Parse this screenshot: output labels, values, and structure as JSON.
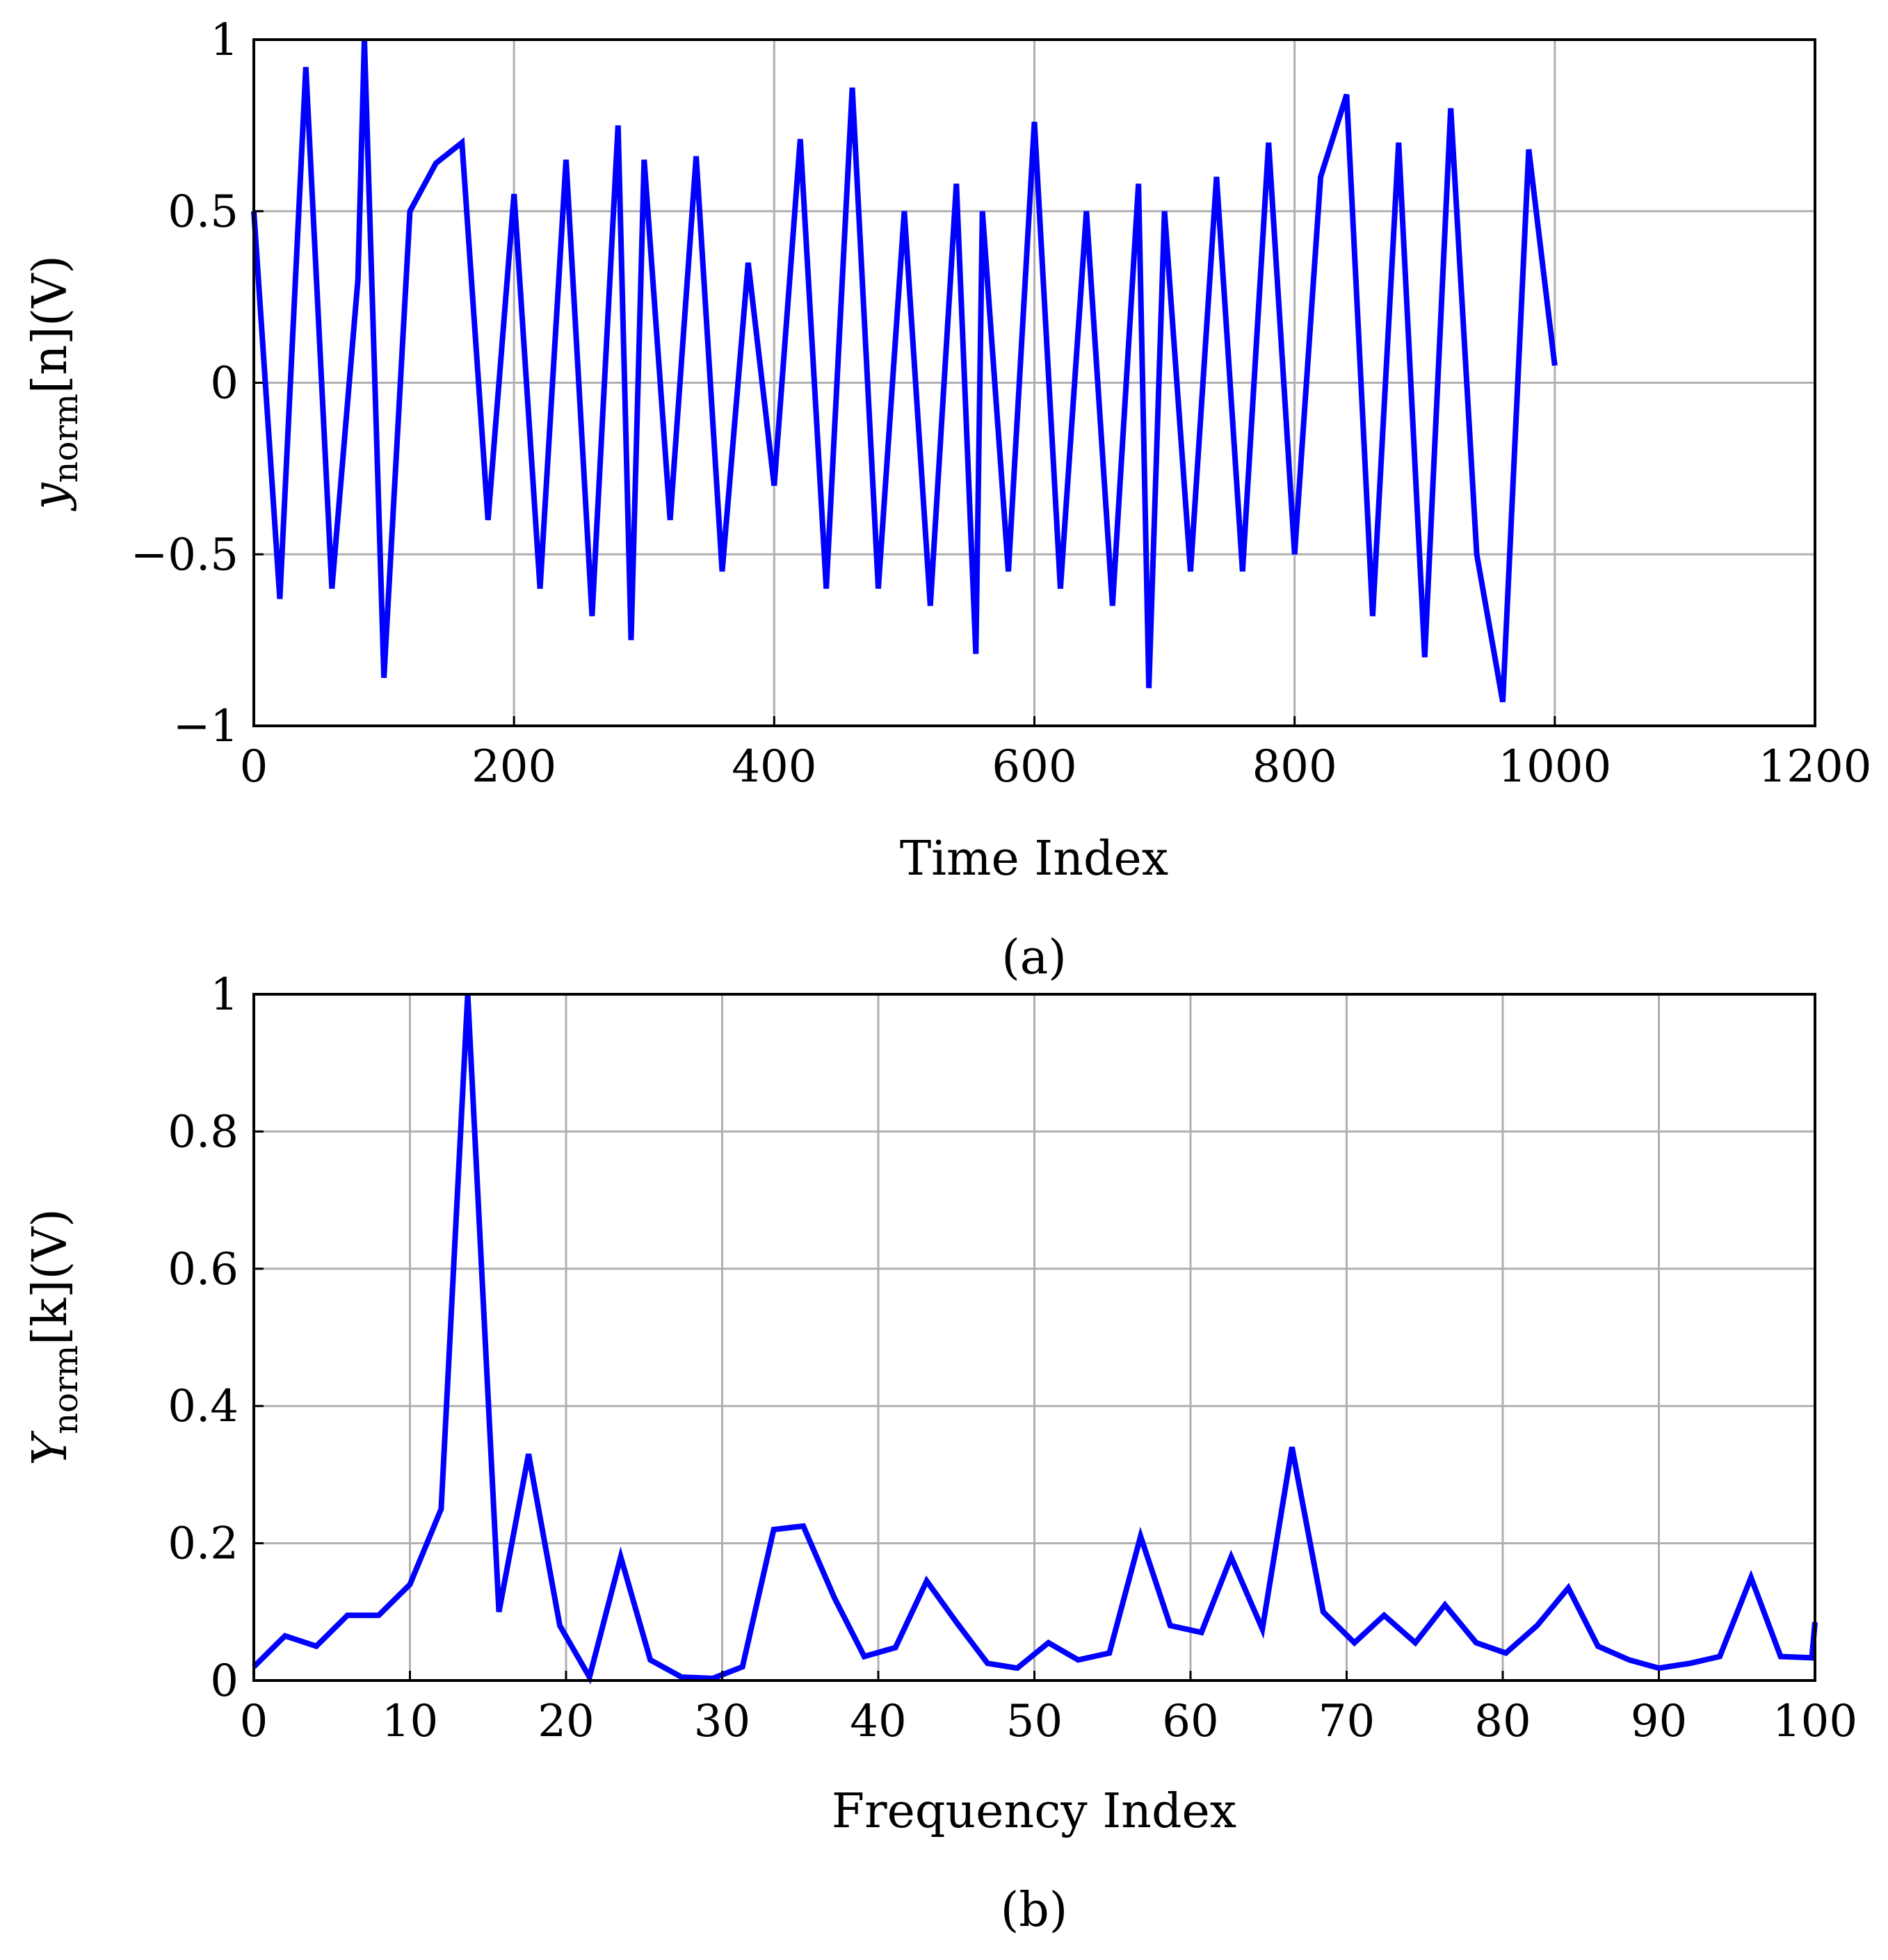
{
  "chart_data": [
    {
      "type": "line",
      "panel": "a",
      "caption": "(a)",
      "xlabel": "Time Index",
      "ylabel": "y[n](V)",
      "ylabel_main": "y",
      "ylabel_sub": "norm",
      "ylabel_rest": "[n](V)",
      "xlim": [
        0,
        1200
      ],
      "ylim": [
        -1,
        1
      ],
      "xticks": [
        0,
        200,
        400,
        600,
        800,
        1000,
        1200
      ],
      "xtick_labels": [
        "0",
        "200",
        "400",
        "600",
        "800",
        "1000",
        "1200"
      ],
      "yticks": [
        -1,
        -0.5,
        0,
        0.5,
        1
      ],
      "ytick_labels": [
        "−1",
        "−0.5",
        "0",
        "0.5",
        "1"
      ],
      "grid": true,
      "color": "#0000ff",
      "series": [
        {
          "x": [
            0,
            20,
            40,
            60,
            80,
            85,
            100,
            120,
            140,
            160,
            180,
            200,
            220,
            240,
            260,
            280,
            290,
            300,
            320,
            340,
            360,
            380,
            400,
            420,
            440,
            460,
            480,
            500,
            520,
            540,
            555,
            560,
            580,
            600,
            620,
            640,
            660,
            680,
            688,
            700,
            720,
            740,
            760,
            780,
            800,
            820,
            840,
            860,
            880,
            900,
            920,
            940,
            960,
            980,
            1000
          ],
          "y": [
            0.5,
            -0.63,
            0.92,
            -0.6,
            0.3,
            1.0,
            -0.86,
            0.5,
            0.64,
            0.7,
            -0.4,
            0.55,
            -0.6,
            0.65,
            -0.68,
            0.75,
            -0.75,
            0.65,
            -0.4,
            0.66,
            -0.55,
            0.35,
            -0.3,
            0.71,
            -0.6,
            0.86,
            -0.6,
            0.5,
            -0.65,
            0.58,
            -0.79,
            0.5,
            -0.55,
            0.76,
            -0.6,
            0.5,
            -0.65,
            0.58,
            -0.89,
            0.5,
            -0.55,
            0.6,
            -0.55,
            0.7,
            -0.5,
            0.6,
            0.84,
            -0.68,
            0.7,
            -0.8,
            0.8,
            -0.5,
            -0.93,
            0.68,
            0.05
          ]
        }
      ]
    },
    {
      "type": "line",
      "panel": "b",
      "caption": "(b)",
      "xlabel": "Frequency Index",
      "ylabel": "Y[k](V)",
      "ylabel_main": "Y",
      "ylabel_sub": "norm",
      "ylabel_rest": "[k](V)",
      "xlim": [
        0,
        100
      ],
      "ylim": [
        0,
        1
      ],
      "xticks": [
        0,
        10,
        20,
        30,
        40,
        50,
        60,
        70,
        80,
        90,
        100
      ],
      "xtick_labels": [
        "0",
        "10",
        "20",
        "30",
        "40",
        "50",
        "60",
        "70",
        "80",
        "90",
        "100"
      ],
      "yticks": [
        0,
        0.2,
        0.4,
        0.6,
        0.8,
        1
      ],
      "ytick_labels": [
        "0",
        "0.2",
        "0.4",
        "0.6",
        "0.8",
        "1"
      ],
      "grid": true,
      "color": "#0000ff",
      "series": [
        {
          "x": [
            0,
            2,
            4,
            6,
            8,
            10,
            12,
            13.7,
            15.7,
            17.6,
            19.6,
            21.5,
            23.5,
            25.4,
            27.4,
            29.4,
            31.3,
            33.3,
            35.2,
            37.2,
            39.1,
            41.1,
            43.1,
            45,
            47,
            48.9,
            50.9,
            52.8,
            54.8,
            56.8,
            58.7,
            60.7,
            62.6,
            64.6,
            66.5,
            68.5,
            70.5,
            72.4,
            74.4,
            76.3,
            78.3,
            80.2,
            82.2,
            84.2,
            86.1,
            88.1,
            90,
            92,
            93.9,
            95.9,
            97.8,
            99.8,
            100
          ],
          "y": [
            0.02,
            0.065,
            0.05,
            0.095,
            0.095,
            0.14,
            0.25,
            1.0,
            0.1,
            0.33,
            0.08,
            0.005,
            0.18,
            0.03,
            0.005,
            0.003,
            0.02,
            0.22,
            0.225,
            0.12,
            0.035,
            0.048,
            0.145,
            0.085,
            0.025,
            0.018,
            0.055,
            0.03,
            0.04,
            0.21,
            0.08,
            0.07,
            0.18,
            0.075,
            0.34,
            0.1,
            0.055,
            0.095,
            0.055,
            0.11,
            0.055,
            0.04,
            0.08,
            0.135,
            0.05,
            0.03,
            0.018,
            0.025,
            0.035,
            0.15,
            0.035,
            0.033,
            0.085
          ]
        }
      ]
    }
  ]
}
